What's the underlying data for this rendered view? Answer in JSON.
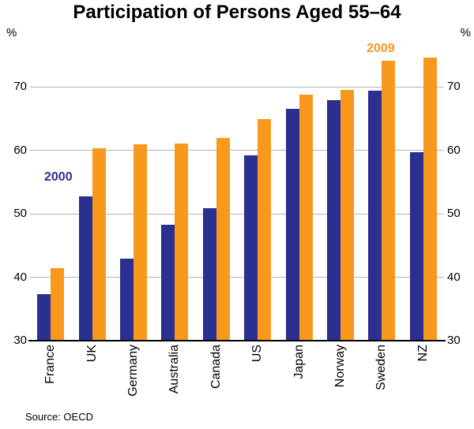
{
  "title": "Participation of Persons Aged 55–64",
  "left_unit": "%",
  "right_unit": "%",
  "annotations": {
    "series_2000": "2000",
    "series_2009": "2009"
  },
  "source": "Source: OECD",
  "colors": {
    "blue_2000": "#2B2F90",
    "orange_2009": "#F8981D",
    "gridline": "#b3b3b3",
    "axis": "#000000"
  },
  "chart_data": {
    "type": "bar",
    "title": "Participation of Persons Aged 55–64",
    "unit": "%",
    "categories": [
      "France",
      "UK",
      "Germany",
      "Australia",
      "Canada",
      "US",
      "Japan",
      "Norway",
      "Sweden",
      "NZ"
    ],
    "series": [
      {
        "name": "2000",
        "color": "#2B2F90",
        "values": [
          37.3,
          52.7,
          42.9,
          48.3,
          50.9,
          59.2,
          66.5,
          67.9,
          69.4,
          59.7
        ]
      },
      {
        "name": "2009",
        "color": "#F8981D",
        "values": [
          41.4,
          60.3,
          61.0,
          61.1,
          62.0,
          64.9,
          68.8,
          69.5,
          74.1,
          74.7
        ]
      }
    ],
    "ylim": [
      30,
      78
    ],
    "yticks": [
      30,
      40,
      50,
      60,
      70
    ],
    "grid": true,
    "legend_position": "inline-annotations",
    "source": "Source: OECD"
  }
}
